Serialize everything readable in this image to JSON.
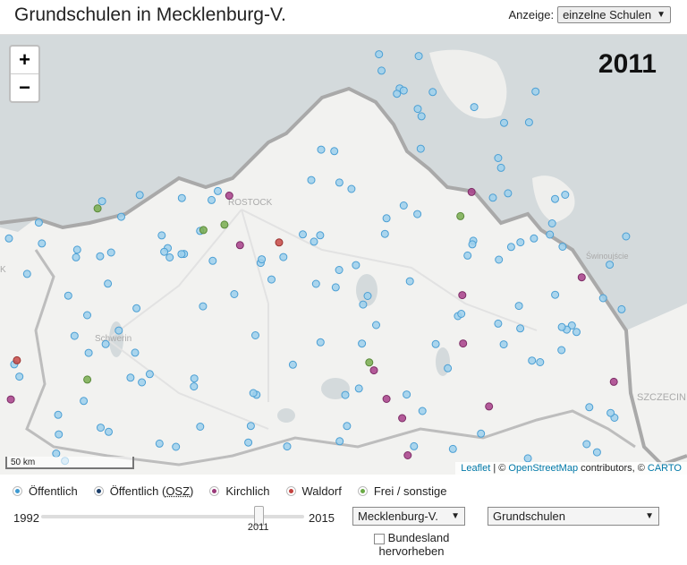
{
  "header": {
    "title": "Grundschulen in Mecklenburg-V.",
    "anzeige_label": "Anzeige:",
    "anzeige_value": "einzelne Schulen"
  },
  "map": {
    "year": "2011",
    "zoom_in": "+",
    "zoom_out": "−",
    "scale_label": "50 km",
    "attribution": {
      "leaflet": "Leaflet",
      "sep1": " | © ",
      "osm": "OpenStreetMap",
      "contrib": " contributors, © ",
      "carto": "CARTO"
    },
    "place_labels": [
      "ROSTOCK",
      "Schwerin",
      "Świnoujście",
      "SZCZECIN",
      "K"
    ]
  },
  "legend": [
    {
      "label": "Öffentlich",
      "color": "#3e9ad1"
    },
    {
      "label": "Öffentlich (",
      "abbr": "OSZ",
      "close": ")",
      "color": "#1c3f6b"
    },
    {
      "label": "Kirchlich",
      "color": "#9b3a7a"
    },
    {
      "label": "Waldorf",
      "color": "#c3423f"
    },
    {
      "label": "Frei / sonstige",
      "color": "#6aaa45"
    }
  ],
  "slider": {
    "min": "1992",
    "max": "2015",
    "current": "2011",
    "fraction": 0.826
  },
  "region_select": "Mecklenburg-V.",
  "type_select": "Grundschulen",
  "bundesland": {
    "line1": "Bundesland",
    "line2": "hervorheben",
    "checked": false
  },
  "colors": {
    "public": "#9ed0ec",
    "public_stroke": "#4b9fd4",
    "church": "#a8408a",
    "waldorf": "#c84a47",
    "free": "#79ad4f"
  }
}
